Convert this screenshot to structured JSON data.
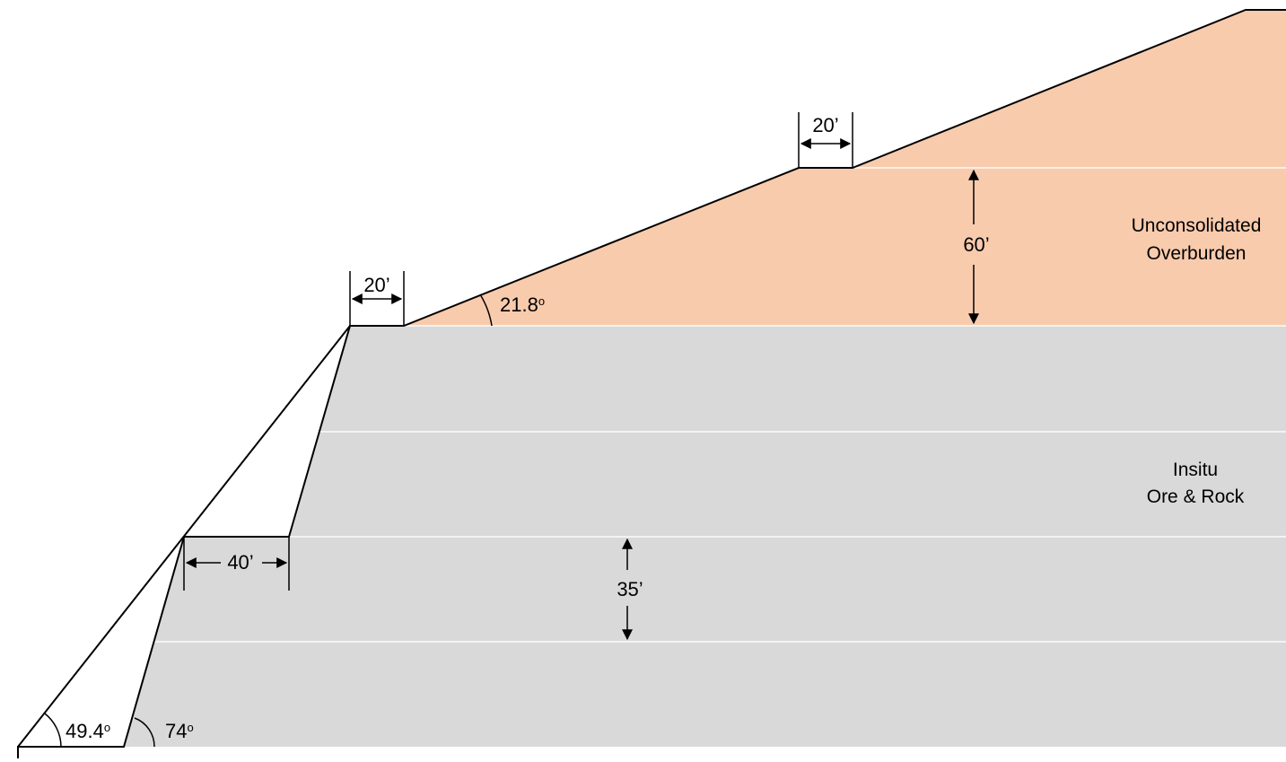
{
  "colors": {
    "overburden": "#f8cbad",
    "rock": "#d9d9d9",
    "line": "#000000",
    "background": "#ffffff"
  },
  "layers": {
    "overburden": {
      "line1": "Unconsolidated",
      "line2": "Overburden"
    },
    "rock": {
      "line1": "Insitu",
      "line2": "Ore & Rock"
    }
  },
  "dimensions": {
    "upper_bench_width": "20’",
    "lower_bench_width": "20’",
    "rock_bench_width": "40’",
    "overburden_height": "60’",
    "rock_bench_height": "35’"
  },
  "angles": {
    "overburden_slope": "21.8",
    "overall_slope": "49.4",
    "face_angle": "74",
    "degree_symbol": "o"
  }
}
